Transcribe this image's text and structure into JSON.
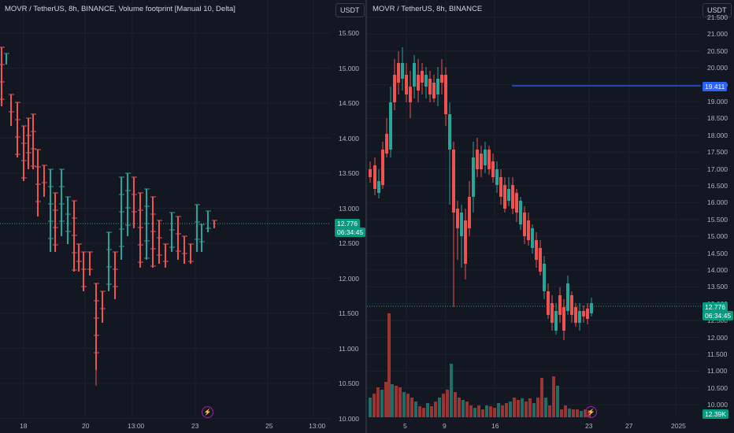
{
  "left_chart": {
    "title": "MOVR / TetherUS, 8h, BINANCE, Volume footprint [Manual 10, Delta]",
    "currency_button": "USDT",
    "price_labels": [
      "15.500",
      "15.000",
      "14.500",
      "14.000",
      "13.500",
      "13.000",
      "12.500",
      "12.000",
      "11.500",
      "11.000",
      "10.500",
      "10.000"
    ],
    "current_price": "12.776",
    "countdown": "06:34:45",
    "time_labels": [
      "18",
      "20",
      "13:00",
      "23",
      "25",
      "13:00"
    ]
  },
  "right_chart": {
    "title": "MOVR / TetherUS, 8h, BINANCE",
    "currency_button": "USDT",
    "price_labels": [
      "21.500",
      "21.000",
      "20.500",
      "20.000",
      "19.500",
      "19.000",
      "18.500",
      "18.000",
      "17.500",
      "17.000",
      "16.500",
      "16.000",
      "15.500",
      "15.000",
      "14.500",
      "14.000",
      "13.500",
      "13.000",
      "12.500",
      "12.000",
      "11.500",
      "11.000",
      "10.500",
      "10.000"
    ],
    "horizontal_line_price": "19.411",
    "current_price": "12.776",
    "countdown": "06:34:45",
    "volume_label": "12.39K",
    "time_labels": [
      "5",
      "9",
      "16",
      "23",
      "27",
      "2025"
    ]
  },
  "colors": {
    "background": "#131722",
    "up": "#26a69a",
    "down": "#ef5350",
    "line": "#2962ff"
  },
  "icons": [
    "lightning-icon"
  ]
}
